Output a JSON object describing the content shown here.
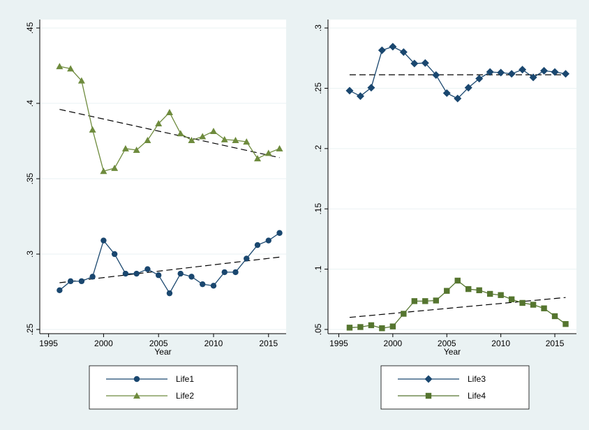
{
  "chart_data": [
    {
      "type": "line",
      "xlabel": "Year",
      "grid": true,
      "x": [
        1996,
        1997,
        1998,
        1999,
        2000,
        2001,
        2002,
        2003,
        2004,
        2005,
        2006,
        2007,
        2008,
        2009,
        2010,
        2011,
        2012,
        2013,
        2014,
        2015,
        2016
      ],
      "xlim": [
        1994.2,
        2016.6
      ],
      "xticks": [
        1995,
        2000,
        2005,
        2010,
        2015
      ],
      "ylim": [
        0.2472,
        0.4556
      ],
      "yticks": [
        {
          "value": 0.25,
          "label": ".25"
        },
        {
          "value": 0.3,
          "label": ".3"
        },
        {
          "value": 0.35,
          "label": ".35"
        },
        {
          "value": 0.4,
          "label": ".4"
        },
        {
          "value": 0.45,
          "label": ".45"
        }
      ],
      "series": [
        {
          "name": "Life1",
          "color": "#1a476f",
          "marker": "circle",
          "values": [
            0.276,
            0.282,
            0.282,
            0.285,
            0.309,
            0.3,
            0.287,
            0.287,
            0.29,
            0.286,
            0.274,
            0.287,
            0.285,
            0.28,
            0.279,
            0.288,
            0.288,
            0.297,
            0.306,
            0.309,
            0.314
          ],
          "fit": [
            0.281,
            0.298
          ]
        },
        {
          "name": "Life2",
          "color": "#6e8b3d",
          "marker": "triangle",
          "values": [
            0.4245,
            0.423,
            0.415,
            0.3825,
            0.355,
            0.357,
            0.37,
            0.369,
            0.3755,
            0.3866,
            0.394,
            0.38,
            0.3755,
            0.378,
            0.3815,
            0.376,
            0.3755,
            0.3745,
            0.3634,
            0.367,
            0.37
          ],
          "fit": [
            0.396,
            0.364
          ]
        }
      ]
    },
    {
      "type": "line",
      "xlabel": "Year",
      "grid": true,
      "x": [
        1996,
        1997,
        1998,
        1999,
        2000,
        2001,
        2002,
        2003,
        2004,
        2005,
        2006,
        2007,
        2008,
        2009,
        2010,
        2011,
        2012,
        2013,
        2014,
        2015,
        2016
      ],
      "xlim": [
        1994,
        2017
      ],
      "xticks": [
        1995,
        2000,
        2005,
        2010,
        2015
      ],
      "ylim": [
        0.0465,
        0.307
      ],
      "yticks": [
        {
          "value": 0.05,
          "label": ".05"
        },
        {
          "value": 0.1,
          "label": ".1"
        },
        {
          "value": 0.15,
          "label": ".15"
        },
        {
          "value": 0.2,
          "label": ".2"
        },
        {
          "value": 0.25,
          "label": ".25"
        },
        {
          "value": 0.3,
          "label": ".3"
        }
      ],
      "series": [
        {
          "name": "Life3",
          "color": "#1a476f",
          "marker": "diamond",
          "values": [
            0.248,
            0.2435,
            0.2505,
            0.2815,
            0.2845,
            0.28,
            0.2705,
            0.271,
            0.261,
            0.246,
            0.2415,
            0.2505,
            0.258,
            0.2635,
            0.263,
            0.262,
            0.2655,
            0.259,
            0.2645,
            0.2635,
            0.262
          ],
          "fit": [
            0.2612,
            0.2612
          ]
        },
        {
          "name": "Life4",
          "color": "#55752f",
          "marker": "square",
          "values": [
            0.0515,
            0.052,
            0.0535,
            0.051,
            0.0525,
            0.063,
            0.0735,
            0.0735,
            0.074,
            0.082,
            0.0905,
            0.0835,
            0.0825,
            0.0795,
            0.0785,
            0.075,
            0.072,
            0.0705,
            0.0675,
            0.061,
            0.0545
          ],
          "fit": [
            0.06,
            0.0765
          ]
        }
      ]
    }
  ]
}
